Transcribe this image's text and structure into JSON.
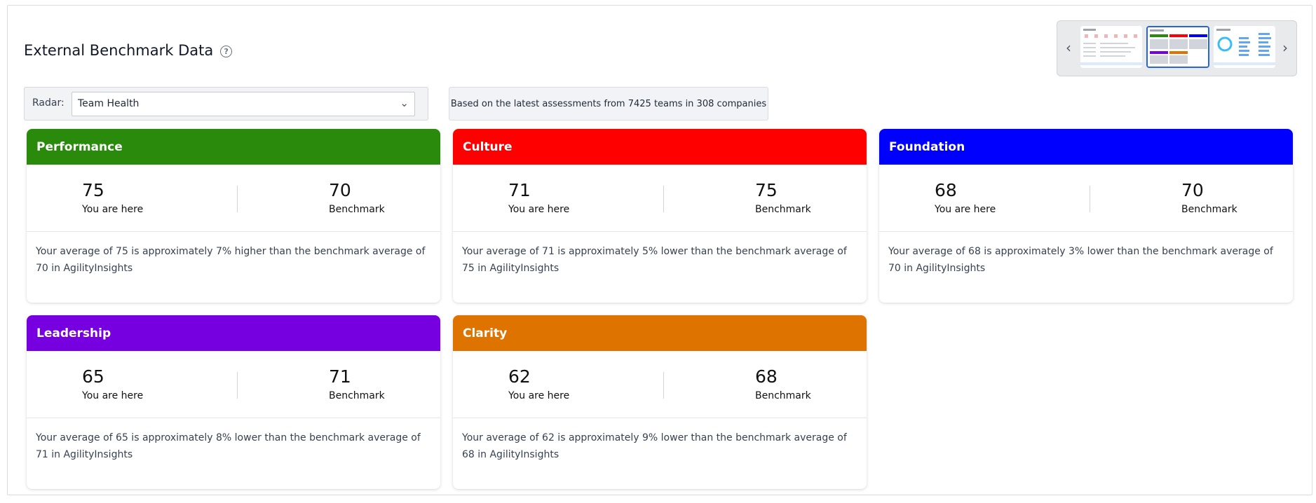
{
  "page": {
    "title": "External Benchmark Data",
    "help_icon": "question-circle-icon"
  },
  "carousel": {
    "prev_icon": "‹",
    "next_icon": "›"
  },
  "radar": {
    "label": "Radar:",
    "selected": "Team Health",
    "chevron": "⌄"
  },
  "info": "Based on the latest assessments from 7425 teams in 308 companies",
  "cards": [
    {
      "title": "Performance",
      "color": "#298a0b",
      "you_value": "75",
      "you_label": "You are here",
      "bench_value": "70",
      "bench_label": "Benchmark",
      "description": "Your average of 75 is approximately 7% higher than the benchmark average of 70 in AgilityInsights"
    },
    {
      "title": "Culture",
      "color": "#ff0000",
      "you_value": "71",
      "you_label": "You are here",
      "bench_value": "75",
      "bench_label": "Benchmark",
      "description": "Your average of 71 is approximately 5% lower than the benchmark average of 75 in AgilityInsights"
    },
    {
      "title": "Foundation",
      "color": "#0000ff",
      "you_value": "68",
      "you_label": "You are here",
      "bench_value": "70",
      "bench_label": "Benchmark",
      "description": "Your average of 68 is approximately 3% lower than the benchmark average of 70 in AgilityInsights"
    },
    {
      "title": "Leadership",
      "color": "#7700e0",
      "you_value": "65",
      "you_label": "You are here",
      "bench_value": "71",
      "bench_label": "Benchmark",
      "description": "Your average of 65 is approximately 8% lower than the benchmark average of 71 in AgilityInsights"
    },
    {
      "title": "Clarity",
      "color": "#de7300",
      "you_value": "62",
      "you_label": "You are here",
      "bench_value": "68",
      "bench_label": "Benchmark",
      "description": "Your average of 62 is approximately 9% lower than the benchmark average of 68 in AgilityInsights"
    }
  ]
}
